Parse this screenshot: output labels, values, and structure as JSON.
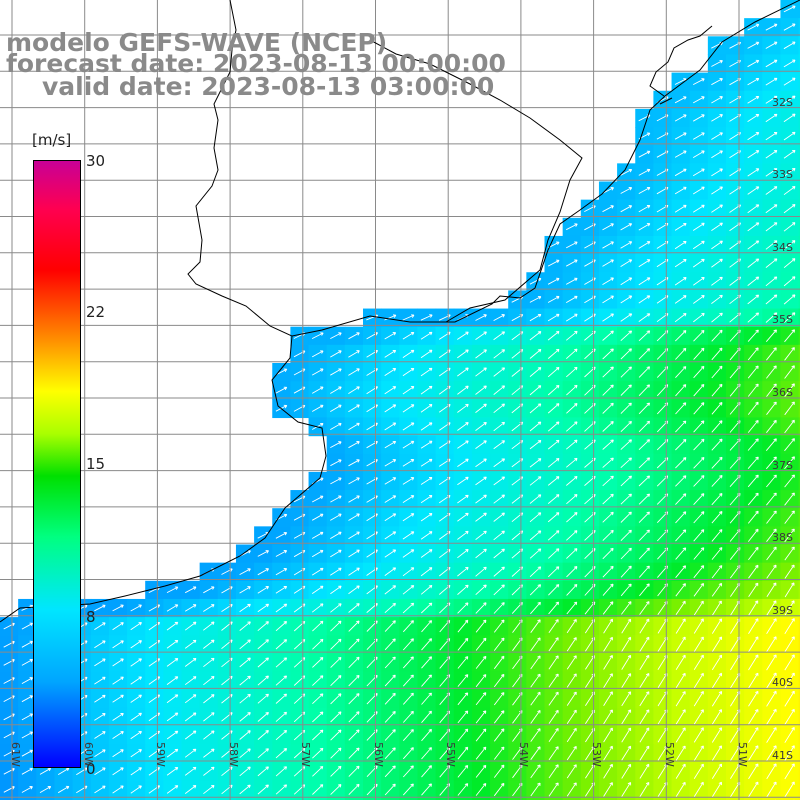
{
  "title": {
    "line1": "modelo GEFS-WAVE (NCEP)",
    "line2": "forecast date: 2023-08-13 00:00:00",
    "line3": "valid date: 2023-08-13 03:00:00"
  },
  "colorbar": {
    "unit": "[m/s]",
    "ticks": [
      "30",
      "22",
      "15",
      "8",
      "0"
    ],
    "range": [
      0,
      30
    ],
    "colors": [
      "#0000ff",
      "#00a5ff",
      "#00e6ff",
      "#00ff80",
      "#00e000",
      "#aaff00",
      "#ffff00",
      "#ff8800",
      "#ff0000",
      "#c80096"
    ]
  },
  "lat_labels": [
    "32S",
    "33S",
    "34S",
    "35S",
    "36S",
    "37S",
    "38S",
    "39S",
    "40S",
    "41S"
  ],
  "lon_labels": [
    "61W",
    "60W",
    "59W",
    "58W",
    "57W",
    "56W",
    "55W",
    "54W",
    "53W",
    "52W",
    "51W"
  ],
  "map": {
    "land_color": "#ffffff",
    "grid_color": "#8a8a8a",
    "arrow_color": "#ffffff"
  }
}
